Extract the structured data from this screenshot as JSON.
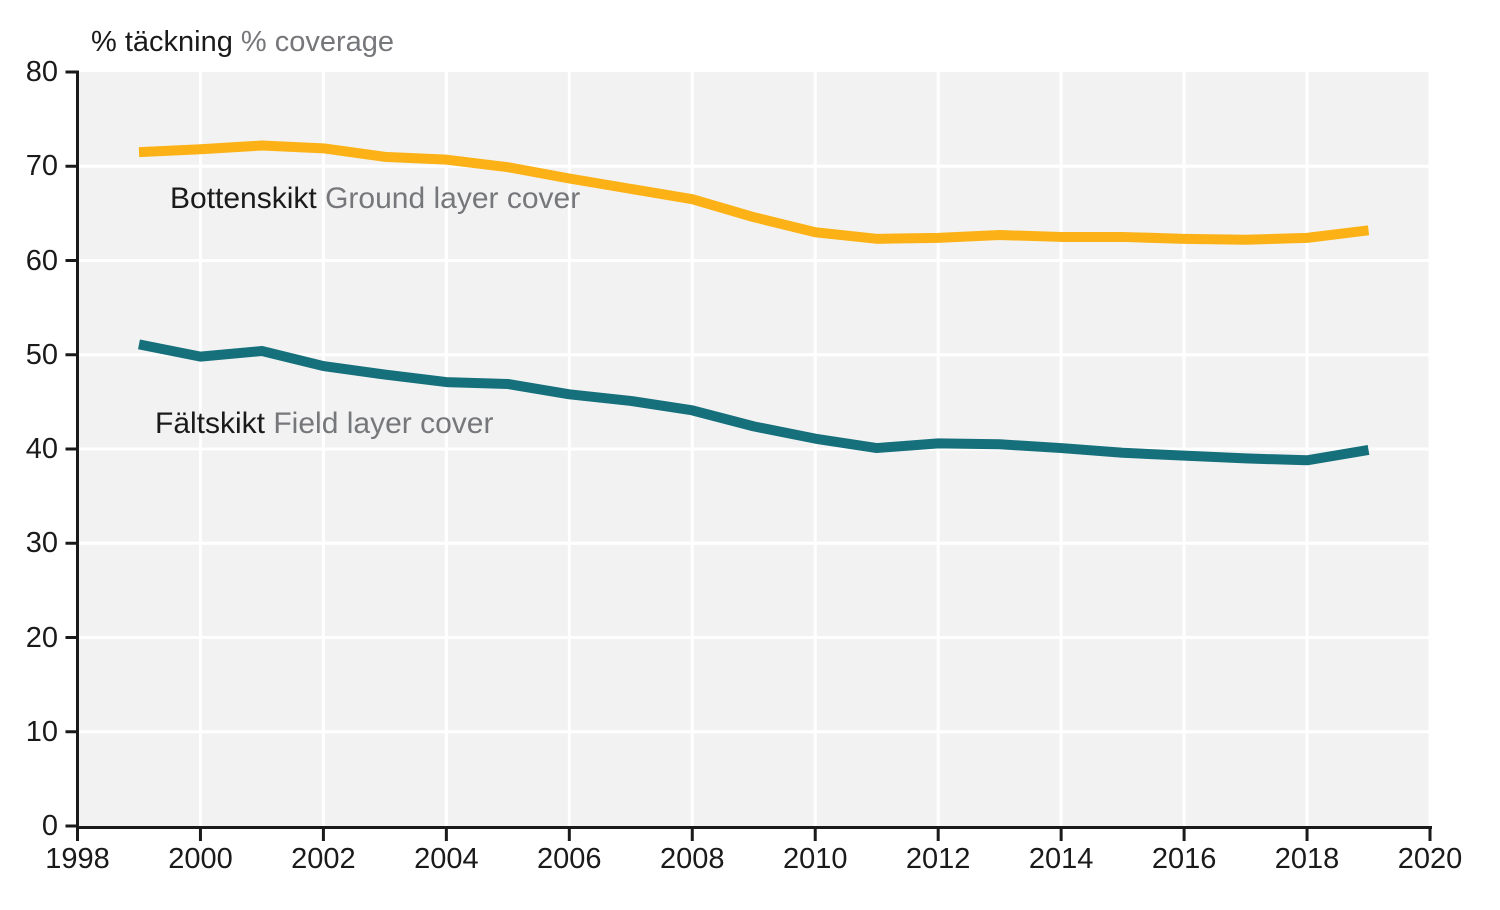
{
  "title": {
    "primary": "% täckning",
    "secondary": "% coverage"
  },
  "labels": {
    "ground": {
      "primary": "Bottenskikt",
      "secondary": "Ground layer cover"
    },
    "field": {
      "primary": "Fältskikt",
      "secondary": "Field layer cover"
    }
  },
  "chart_data": {
    "type": "line",
    "title": "% täckning % coverage",
    "xlabel": "",
    "ylabel": "% täckning / % coverage",
    "x": [
      1999,
      2000,
      2001,
      2002,
      2003,
      2004,
      2005,
      2006,
      2007,
      2008,
      2009,
      2010,
      2011,
      2012,
      2013,
      2014,
      2015,
      2016,
      2017,
      2018,
      2019
    ],
    "series": [
      {
        "name": "Bottenskikt Ground layer cover",
        "color": "#fcb216",
        "values": [
          71.5,
          71.8,
          72.2,
          71.9,
          71.0,
          70.7,
          69.9,
          68.7,
          67.6,
          66.5,
          64.6,
          63.0,
          62.3,
          62.4,
          62.7,
          62.5,
          62.5,
          62.3,
          62.2,
          62.4,
          63.2
        ]
      },
      {
        "name": "Fältskikt Field layer cover",
        "color": "#16707c",
        "values": [
          51.1,
          49.8,
          50.4,
          48.8,
          47.9,
          47.1,
          46.9,
          45.8,
          45.1,
          44.1,
          42.4,
          41.1,
          40.1,
          40.6,
          40.5,
          40.1,
          39.6,
          39.3,
          39.0,
          38.8,
          39.9
        ]
      }
    ],
    "xlim": [
      1998,
      2020
    ],
    "ylim": [
      0,
      80
    ],
    "x_ticks": [
      1998,
      2000,
      2002,
      2004,
      2006,
      2008,
      2010,
      2012,
      2014,
      2016,
      2018,
      2020
    ],
    "y_ticks": [
      0,
      10,
      20,
      30,
      40,
      50,
      60,
      70,
      80
    ],
    "grid": true,
    "plot_bg": "#f2f2f2",
    "grid_color": "#ffffff",
    "axis_color": "#1a1a1a",
    "line_width": 10,
    "legend_position": "inline-labels"
  }
}
